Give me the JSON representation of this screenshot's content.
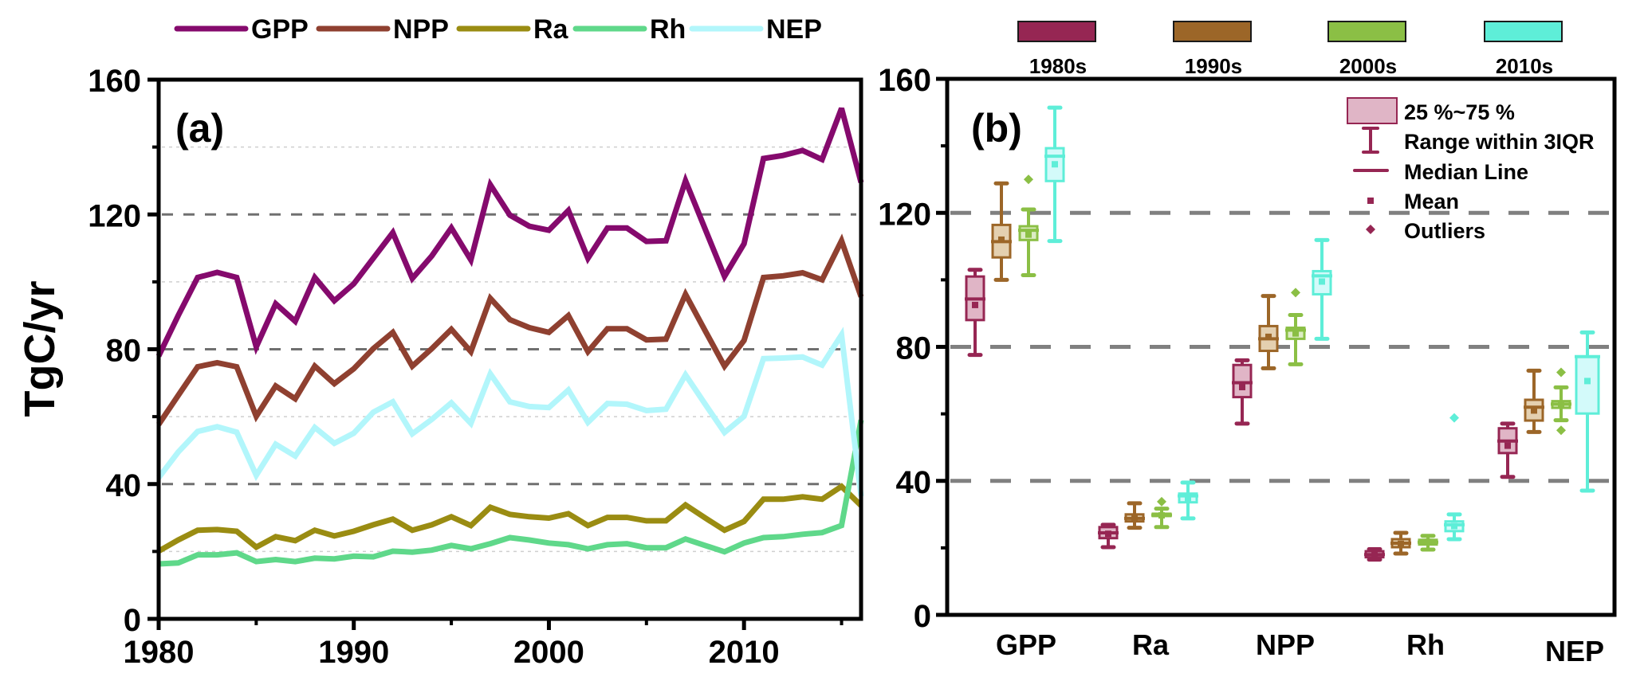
{
  "figure": {
    "y_axis_label": "TgC/yr"
  },
  "chart_data": [
    {
      "id": "a",
      "panel_label": "(a)",
      "type": "line",
      "title": "",
      "xlabel": "",
      "ylabel": "TgC/yr",
      "xlim": [
        1980,
        2016
      ],
      "ylim": [
        0,
        160
      ],
      "xticks": [
        1980,
        1990,
        2000,
        2010
      ],
      "xticks_minor": [
        1985,
        1995,
        2005,
        2015
      ],
      "yticks": [
        0,
        40,
        80,
        120,
        160
      ],
      "yticks_minor": [
        20,
        60,
        100,
        140
      ],
      "grid": "major dashed at 40/80/120, minor dotted at 20/60/100/140",
      "legend_position": "top (outside)",
      "x": [
        1980,
        1981,
        1982,
        1983,
        1984,
        1985,
        1986,
        1987,
        1988,
        1989,
        1990,
        1991,
        1992,
        1993,
        1994,
        1995,
        1996,
        1997,
        1998,
        1999,
        2000,
        2001,
        2002,
        2003,
        2004,
        2005,
        2006,
        2007,
        2008,
        2009,
        2010,
        2011,
        2012,
        2013,
        2014,
        2015,
        2016
      ],
      "series": [
        {
          "name": "GPP",
          "color": "#850a6d",
          "values": [
            78,
            90,
            101.3,
            102.8,
            101.3,
            80.7,
            93.5,
            88.3,
            101.3,
            94.4,
            99.4,
            107,
            114.6,
            101,
            107.7,
            116,
            106.5,
            128.8,
            119.8,
            116.5,
            115.3,
            121.2,
            107,
            116,
            116,
            112,
            112.2,
            130,
            115.8,
            101.6,
            111.3,
            136.6,
            137.5,
            139,
            136.3,
            151.5,
            129.5
          ]
        },
        {
          "name": "NPP",
          "color": "#8f4030",
          "values": [
            57.7,
            66.3,
            74.8,
            76,
            74.8,
            60.1,
            69.1,
            65.3,
            75,
            69.8,
            74.2,
            80.2,
            85,
            75,
            80.2,
            85.9,
            79.3,
            95.1,
            88.8,
            86.4,
            85,
            90,
            79.3,
            86.1,
            86.1,
            82.8,
            83,
            96.3,
            85.6,
            75,
            82.6,
            101.3,
            101.8,
            102.7,
            100.6,
            112.2,
            95.6
          ]
        },
        {
          "name": "Ra",
          "color": "#9a8c12",
          "values": [
            20.1,
            23.4,
            26.3,
            26.5,
            26,
            21.3,
            24.4,
            23.2,
            26.3,
            24.6,
            26,
            27.9,
            29.6,
            26.3,
            27.9,
            30.3,
            27.7,
            33.1,
            31,
            30.3,
            29.9,
            31.2,
            27.7,
            30.1,
            30.1,
            29.1,
            29.1,
            33.8,
            30,
            26.3,
            28.9,
            35.5,
            35.5,
            36.2,
            35.5,
            39.3,
            33.6
          ]
        },
        {
          "name": "Rh",
          "color": "#5fd88a",
          "values": [
            16.3,
            16.6,
            19,
            19,
            19.6,
            17,
            17.6,
            17,
            18,
            17.8,
            18.6,
            18.4,
            20.1,
            19.8,
            20.4,
            21.8,
            20.8,
            22.3,
            24.1,
            23.4,
            22.5,
            22,
            20.8,
            22,
            22.3,
            21.1,
            21.1,
            23.7,
            21.8,
            19.9,
            22.5,
            24.1,
            24.4,
            25.1,
            25.6,
            27.7,
            59
          ]
        },
        {
          "name": "NEP",
          "color": "#b2f6fb",
          "values": [
            41.9,
            49.5,
            55.6,
            57,
            55.4,
            42.6,
            51.8,
            48.3,
            56.8,
            52.1,
            55.1,
            61.3,
            64.4,
            54.9,
            59.2,
            64.1,
            58,
            72.7,
            64.4,
            63,
            62.7,
            67.9,
            58.3,
            63.9,
            63.7,
            61.8,
            62.2,
            72.4,
            63.8,
            55.3,
            60.1,
            77.2,
            77.4,
            77.7,
            75.3,
            84.3,
            36.4
          ]
        }
      ]
    },
    {
      "id": "b",
      "panel_label": "(b)",
      "type": "box",
      "title": "",
      "xlabel": "",
      "ylabel": "TgC/yr",
      "ylim": [
        0,
        160
      ],
      "yticks": [
        0,
        40,
        80,
        120,
        160
      ],
      "yticks_minor": [
        20,
        60,
        100,
        140
      ],
      "grid": "major dashed at 40/80/120",
      "categories": [
        "GPP",
        "Ra",
        "NPP",
        "Rh",
        "NEP"
      ],
      "decade_legend_position": "top (outside)",
      "decades": [
        {
          "name": "1980s",
          "color": "#962653",
          "fill": "#e0b5c6"
        },
        {
          "name": "1990s",
          "color": "#9c6628",
          "fill": "#e4d0b0"
        },
        {
          "name": "2000s",
          "color": "#8bbf45",
          "fill": "#dcecc4"
        },
        {
          "name": "2010s",
          "color": "#5eeed8",
          "fill": "#d3fafa"
        }
      ],
      "box_legend": {
        "position": "top-right",
        "items": [
          {
            "key": "box",
            "label": "25 %~75 %"
          },
          {
            "key": "whisker",
            "label": "Range within 3IQR"
          },
          {
            "key": "median",
            "label": "Median Line"
          },
          {
            "key": "mean",
            "label": "Mean"
          },
          {
            "key": "outlier",
            "label": "Outliers"
          }
        ]
      },
      "boxes": {
        "GPP": [
          {
            "decade": "1980s",
            "whisker_low": 77.6,
            "q1": 88,
            "median": 94.3,
            "mean": 92.5,
            "q3": 101,
            "whisker_high": 103,
            "outliers": []
          },
          {
            "decade": "1990s",
            "whisker_low": 100,
            "q1": 106.7,
            "median": 111.4,
            "mean": 112,
            "q3": 116.4,
            "whisker_high": 128.8,
            "outliers": []
          },
          {
            "decade": "2000s",
            "whisker_low": 101.4,
            "q1": 111.9,
            "median": 114.8,
            "mean": 113.5,
            "q3": 116,
            "whisker_high": 121,
            "outliers": [
              130
            ]
          },
          {
            "decade": "2010s",
            "whisker_low": 111.6,
            "q1": 129.5,
            "median": 136.9,
            "mean": 134.5,
            "q3": 139.3,
            "whisker_high": 151.4,
            "outliers": []
          }
        ],
        "Ra": [
          {
            "decade": "1980s",
            "whisker_low": 20.2,
            "q1": 22.9,
            "median": 24.5,
            "mean": 24.2,
            "q3": 26.2,
            "whisker_high": 26.9,
            "outliers": []
          },
          {
            "decade": "1990s",
            "whisker_low": 26,
            "q1": 27.9,
            "median": 28.8,
            "mean": 29,
            "q3": 30,
            "whisker_high": 33.3,
            "outliers": []
          },
          {
            "decade": "2000s",
            "whisker_low": 26.2,
            "q1": 29.5,
            "median": 29.8,
            "mean": 29.7,
            "q3": 30.2,
            "whisker_high": 31.7,
            "outliers": [
              33.8
            ]
          },
          {
            "decade": "2010s",
            "whisker_low": 28.8,
            "q1": 33.6,
            "median": 35.5,
            "mean": 34.8,
            "q3": 36.2,
            "whisker_high": 39.5,
            "outliers": []
          }
        ],
        "NPP": [
          {
            "decade": "1980s",
            "whisker_low": 57.1,
            "q1": 65,
            "median": 69.3,
            "mean": 68,
            "q3": 74.6,
            "whisker_high": 76,
            "outliers": []
          },
          {
            "decade": "1990s",
            "whisker_low": 73.6,
            "q1": 78.8,
            "median": 82.4,
            "mean": 83,
            "q3": 86.2,
            "whisker_high": 95.2,
            "outliers": []
          },
          {
            "decade": "2000s",
            "whisker_low": 74.8,
            "q1": 82.4,
            "median": 85,
            "mean": 84,
            "q3": 85.7,
            "whisker_high": 89.5,
            "outliers": [
              96.2
            ]
          },
          {
            "decade": "2010s",
            "whisker_low": 82.4,
            "q1": 95.7,
            "median": 101.2,
            "mean": 99.5,
            "q3": 102.6,
            "whisker_high": 111.9,
            "outliers": []
          }
        ],
        "Rh": [
          {
            "decade": "1980s",
            "whisker_low": 16.5,
            "q1": 17.2,
            "median": 18,
            "mean": 18,
            "q3": 19,
            "whisker_high": 19.6,
            "outliers": []
          },
          {
            "decade": "1990s",
            "whisker_low": 18.3,
            "q1": 20.2,
            "median": 21.4,
            "mean": 21.2,
            "q3": 22.6,
            "whisker_high": 24.5,
            "outliers": []
          },
          {
            "decade": "2000s",
            "whisker_low": 19.5,
            "q1": 21,
            "median": 21.7,
            "mean": 21.8,
            "q3": 22.4,
            "whisker_high": 23.6,
            "outliers": []
          },
          {
            "decade": "2010s",
            "whisker_low": 22.6,
            "q1": 25,
            "median": 26.9,
            "mean": 26.5,
            "q3": 27.9,
            "whisker_high": 30,
            "outliers": [
              58.8
            ]
          }
        ],
        "NEP": [
          {
            "decade": "1980s",
            "whisker_low": 41.2,
            "q1": 48.3,
            "median": 51.9,
            "mean": 50.5,
            "q3": 55.7,
            "whisker_high": 57.1,
            "outliers": []
          },
          {
            "decade": "1990s",
            "whisker_low": 54.6,
            "q1": 58,
            "median": 62,
            "mean": 61,
            "q3": 64.2,
            "whisker_high": 72.9,
            "outliers": []
          },
          {
            "decade": "2000s",
            "whisker_low": 58.1,
            "q1": 61.8,
            "median": 62.9,
            "mean": 62.8,
            "q3": 63.8,
            "whisker_high": 67.9,
            "outliers": [
              72.4,
              55.1
            ]
          },
          {
            "decade": "2010s",
            "whisker_low": 37.1,
            "q1": 60.1,
            "median": 77.1,
            "mean": 69.8,
            "q3": 77.1,
            "whisker_high": 84.3,
            "outliers": []
          }
        ]
      }
    }
  ]
}
